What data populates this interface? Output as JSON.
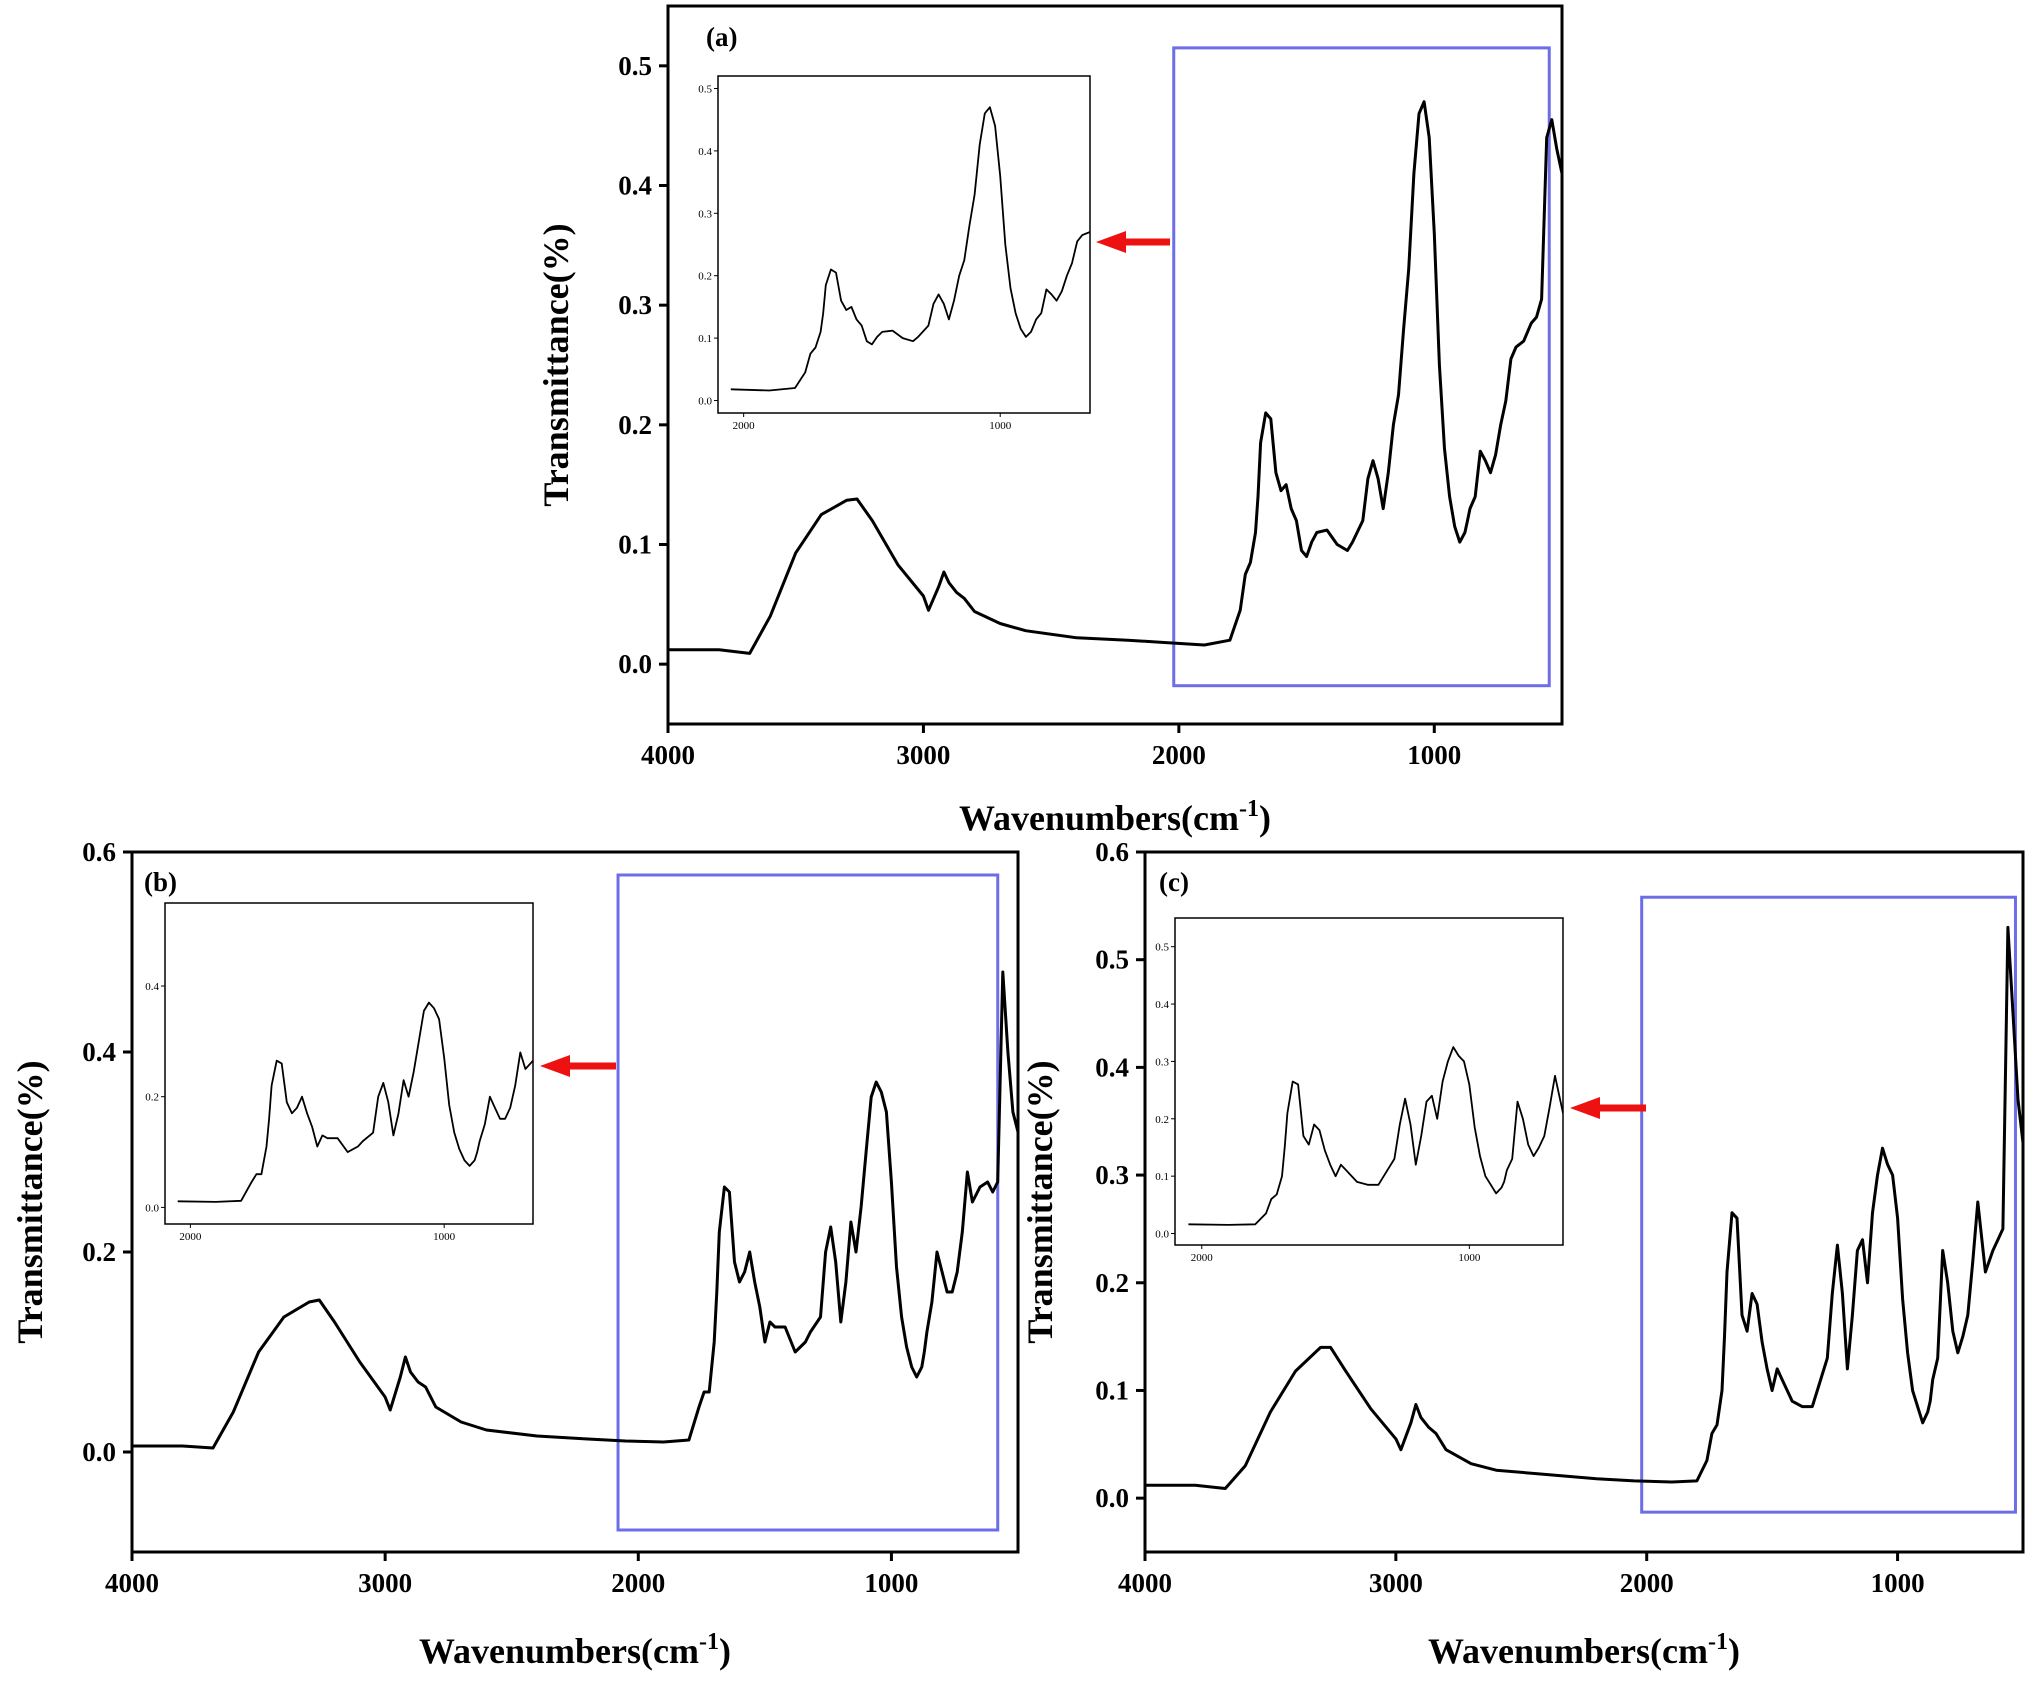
{
  "chart_data": [
    {
      "type": "line",
      "panel_label": "(a)",
      "xlabel": "Wavenumbers(cm⁻¹)",
      "ylabel": "Transmittance(%)",
      "xlim": [
        4000,
        500
      ],
      "ylim": [
        -0.05,
        0.55
      ],
      "x_ticks": [
        4000,
        3000,
        2000,
        1000
      ],
      "y_ticks": [
        0.0,
        0.1,
        0.2,
        0.3,
        0.4,
        0.5
      ],
      "highlight_box": {
        "x": [
          2020,
          550
        ],
        "y": [
          -0.018,
          0.515
        ],
        "color": "#6d6de8"
      },
      "series": [
        {
          "x": [
            4000,
            3800,
            3680,
            3600,
            3500,
            3400,
            3300,
            3260,
            3200,
            3100,
            3000,
            2980,
            2940,
            2920,
            2900,
            2870,
            2840,
            2800,
            2700,
            2600,
            2400,
            2200,
            2050,
            1900,
            1800,
            1760,
            1740,
            1720,
            1700,
            1690,
            1680,
            1660,
            1640,
            1620,
            1600,
            1580,
            1560,
            1540,
            1520,
            1500,
            1480,
            1460,
            1420,
            1380,
            1340,
            1320,
            1280,
            1260,
            1240,
            1220,
            1200,
            1180,
            1160,
            1140,
            1120,
            1100,
            1080,
            1060,
            1040,
            1020,
            1000,
            980,
            960,
            940,
            920,
            900,
            880,
            870,
            860,
            840,
            820,
            800,
            780,
            760,
            740,
            720,
            700,
            680,
            650,
            620,
            600,
            580,
            560,
            540,
            520,
            500
          ],
          "y": [
            0.012,
            0.012,
            0.009,
            0.04,
            0.093,
            0.125,
            0.137,
            0.138,
            0.12,
            0.083,
            0.057,
            0.045,
            0.065,
            0.077,
            0.068,
            0.06,
            0.055,
            0.044,
            0.034,
            0.028,
            0.022,
            0.02,
            0.018,
            0.016,
            0.02,
            0.045,
            0.075,
            0.085,
            0.11,
            0.14,
            0.185,
            0.21,
            0.205,
            0.16,
            0.145,
            0.15,
            0.13,
            0.12,
            0.095,
            0.09,
            0.102,
            0.11,
            0.112,
            0.1,
            0.095,
            0.102,
            0.12,
            0.155,
            0.17,
            0.155,
            0.13,
            0.16,
            0.2,
            0.225,
            0.28,
            0.33,
            0.41,
            0.46,
            0.47,
            0.44,
            0.36,
            0.25,
            0.18,
            0.14,
            0.115,
            0.102,
            0.11,
            0.12,
            0.13,
            0.14,
            0.178,
            0.17,
            0.16,
            0.175,
            0.2,
            0.22,
            0.255,
            0.265,
            0.27,
            0.285,
            0.29,
            0.305,
            0.44,
            0.455,
            0.43,
            0.41
          ]
        }
      ],
      "inset": {
        "xlim": [
          2100,
          650
        ],
        "ylim": [
          -0.02,
          0.52
        ],
        "x_ticks": [
          2000,
          1000
        ],
        "y_ticks": [
          0.0,
          0.1,
          0.2,
          0.3,
          0.4,
          0.5
        ],
        "y_tick_labels": [
          "0.0",
          "0.1",
          "0.2",
          "0.3",
          "0.4",
          "0.5"
        ]
      }
    },
    {
      "type": "line",
      "panel_label": "(b)",
      "xlabel": "Wavenumbers(cm⁻¹)",
      "ylabel": "Transmittance(%)",
      "xlim": [
        4000,
        500
      ],
      "ylim": [
        -0.1,
        0.6
      ],
      "x_ticks": [
        4000,
        3000,
        2000,
        1000
      ],
      "y_ticks": [
        0.0,
        0.2,
        0.4,
        0.6
      ],
      "highlight_box": {
        "x": [
          2080,
          580
        ],
        "y": [
          -0.078,
          0.577
        ],
        "color": "#6d6de8"
      },
      "series": [
        {
          "x": [
            4000,
            3800,
            3680,
            3600,
            3500,
            3400,
            3300,
            3260,
            3200,
            3100,
            3000,
            2980,
            2940,
            2920,
            2900,
            2870,
            2840,
            2800,
            2700,
            2600,
            2400,
            2200,
            2050,
            1900,
            1800,
            1760,
            1740,
            1720,
            1700,
            1690,
            1680,
            1660,
            1640,
            1620,
            1600,
            1580,
            1560,
            1540,
            1520,
            1500,
            1480,
            1460,
            1420,
            1380,
            1340,
            1320,
            1280,
            1260,
            1240,
            1220,
            1200,
            1180,
            1160,
            1140,
            1120,
            1100,
            1080,
            1060,
            1040,
            1020,
            1000,
            980,
            960,
            940,
            920,
            900,
            880,
            870,
            860,
            840,
            820,
            800,
            780,
            760,
            740,
            720,
            700,
            680,
            650,
            620,
            600,
            580,
            560,
            540,
            520,
            500
          ],
          "y": [
            0.006,
            0.006,
            0.004,
            0.04,
            0.1,
            0.135,
            0.15,
            0.152,
            0.13,
            0.09,
            0.055,
            0.042,
            0.075,
            0.095,
            0.08,
            0.07,
            0.065,
            0.045,
            0.03,
            0.022,
            0.016,
            0.013,
            0.011,
            0.01,
            0.012,
            0.045,
            0.06,
            0.06,
            0.11,
            0.16,
            0.22,
            0.265,
            0.26,
            0.19,
            0.17,
            0.18,
            0.2,
            0.17,
            0.145,
            0.11,
            0.13,
            0.125,
            0.125,
            0.1,
            0.11,
            0.12,
            0.135,
            0.2,
            0.225,
            0.19,
            0.13,
            0.17,
            0.23,
            0.2,
            0.245,
            0.3,
            0.355,
            0.37,
            0.36,
            0.34,
            0.27,
            0.185,
            0.135,
            0.105,
            0.085,
            0.075,
            0.085,
            0.1,
            0.12,
            0.15,
            0.2,
            0.18,
            0.16,
            0.16,
            0.18,
            0.22,
            0.28,
            0.25,
            0.265,
            0.27,
            0.26,
            0.27,
            0.48,
            0.4,
            0.34,
            0.32
          ]
        }
      ],
      "inset": {
        "xlim": [
          2100,
          650
        ],
        "ylim": [
          -0.03,
          0.55
        ],
        "x_ticks": [
          2000,
          1000
        ],
        "y_ticks": [
          0.0,
          0.2,
          0.4
        ],
        "y_tick_labels": [
          "0.0",
          "0.2",
          "0.4"
        ]
      }
    },
    {
      "type": "line",
      "panel_label": "(c)",
      "xlabel": "Wavenumbers(cm⁻¹)",
      "ylabel": "Transmittance(%)",
      "xlim": [
        4000,
        500
      ],
      "ylim": [
        -0.05,
        0.6
      ],
      "x_ticks": [
        4000,
        3000,
        2000,
        1000
      ],
      "y_ticks": [
        0.0,
        0.1,
        0.2,
        0.3,
        0.4,
        0.5,
        0.6
      ],
      "highlight_box": {
        "x": [
          2020,
          530
        ],
        "y": [
          -0.013,
          0.558
        ],
        "color": "#6d6de8"
      },
      "series": [
        {
          "x": [
            4000,
            3800,
            3680,
            3600,
            3500,
            3400,
            3300,
            3260,
            3200,
            3100,
            3000,
            2980,
            2940,
            2920,
            2900,
            2870,
            2840,
            2800,
            2700,
            2600,
            2400,
            2200,
            2050,
            1900,
            1800,
            1760,
            1740,
            1720,
            1700,
            1690,
            1680,
            1660,
            1640,
            1620,
            1600,
            1580,
            1560,
            1540,
            1520,
            1500,
            1480,
            1460,
            1420,
            1380,
            1340,
            1320,
            1280,
            1260,
            1240,
            1220,
            1200,
            1180,
            1160,
            1140,
            1120,
            1100,
            1080,
            1060,
            1040,
            1020,
            1000,
            980,
            960,
            940,
            920,
            900,
            880,
            870,
            860,
            840,
            820,
            800,
            780,
            760,
            740,
            720,
            700,
            680,
            650,
            620,
            600,
            580,
            560,
            540,
            520,
            500
          ],
          "y": [
            0.012,
            0.012,
            0.009,
            0.03,
            0.08,
            0.118,
            0.14,
            0.14,
            0.118,
            0.083,
            0.055,
            0.045,
            0.07,
            0.087,
            0.075,
            0.066,
            0.06,
            0.045,
            0.032,
            0.026,
            0.022,
            0.018,
            0.016,
            0.015,
            0.016,
            0.035,
            0.06,
            0.068,
            0.1,
            0.15,
            0.21,
            0.265,
            0.26,
            0.17,
            0.155,
            0.19,
            0.18,
            0.145,
            0.12,
            0.1,
            0.12,
            0.11,
            0.09,
            0.085,
            0.085,
            0.1,
            0.13,
            0.19,
            0.235,
            0.19,
            0.12,
            0.17,
            0.23,
            0.24,
            0.2,
            0.265,
            0.3,
            0.325,
            0.31,
            0.3,
            0.26,
            0.185,
            0.135,
            0.1,
            0.085,
            0.07,
            0.08,
            0.09,
            0.11,
            0.13,
            0.23,
            0.2,
            0.155,
            0.135,
            0.15,
            0.17,
            0.22,
            0.275,
            0.21,
            0.23,
            0.24,
            0.25,
            0.53,
            0.45,
            0.37,
            0.33
          ]
        }
      ],
      "inset": {
        "xlim": [
          2100,
          650
        ],
        "ylim": [
          -0.02,
          0.55
        ],
        "x_ticks": [
          2000,
          1000
        ],
        "y_ticks": [
          0.0,
          0.1,
          0.2,
          0.3,
          0.4,
          0.5
        ],
        "y_tick_labels": [
          "0.0",
          "0.1",
          "0.2",
          "0.3",
          "0.4",
          "0.5"
        ]
      }
    }
  ]
}
